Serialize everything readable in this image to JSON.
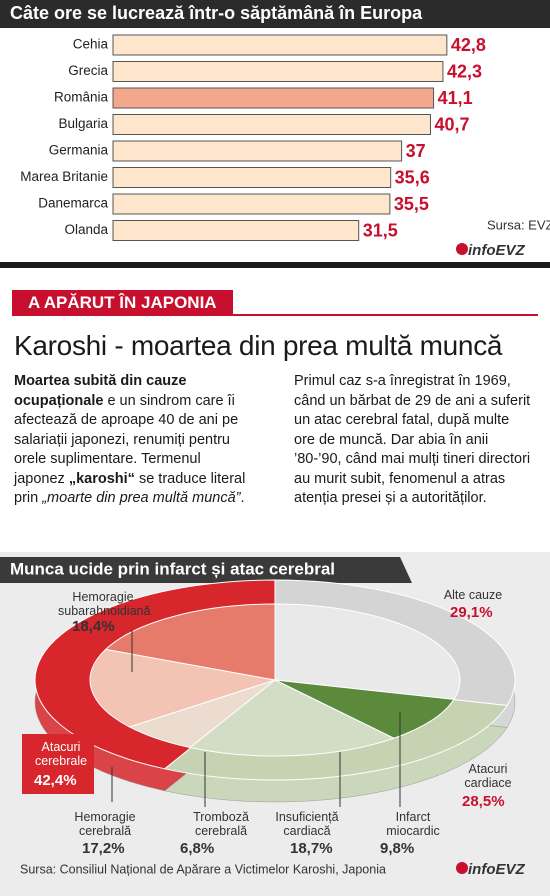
{
  "chart_data": [
    {
      "type": "bar",
      "title": "Câte ore se lucrează într-o săptămână în Europa",
      "categories": [
        "Cehia",
        "Grecia",
        "România",
        "Bulgaria",
        "Germania",
        "Marea Britanie",
        "Danemarca",
        "Olanda"
      ],
      "values": [
        42.8,
        42.3,
        41.1,
        40.7,
        37,
        35.6,
        35.5,
        31.5
      ],
      "value_labels": [
        "42,8",
        "42,3",
        "41,1",
        "40,7",
        "37",
        "35,6",
        "35,5",
        "31,5"
      ],
      "colors": [
        "#fde6cc",
        "#fde6cc",
        "#f3a88c",
        "#fde6cc",
        "#fde6cc",
        "#fde6cc",
        "#fde6cc",
        "#fde6cc"
      ],
      "source": "Sursa: EVZ",
      "logo": "infoEVZ"
    },
    {
      "type": "pie",
      "title": "Munca ucide prin infarct și atac cerebral",
      "slices": [
        {
          "name": "Alte cauze",
          "value": 29.1,
          "value_label": "29,1%",
          "color": "#d4d4d4",
          "parts": [
            {
              "name": null,
              "value": 29.1,
              "value_label": null,
              "color": "#e9e9e9"
            }
          ]
        },
        {
          "name": "Atacuri cardiace",
          "value": 28.5,
          "value_label": "28,5%",
          "color": "#c5d3b3",
          "parts": [
            {
              "name": "Infarct miocardic",
              "value": 9.8,
              "value_label": "9,8%",
              "color": "#5b8a3c"
            },
            {
              "name": "Insuficiență cardiacă",
              "value": 18.7,
              "value_label": "18,7%",
              "color": "#d3ddc6"
            }
          ]
        },
        {
          "name": "Atacuri cerebrale",
          "value": 42.4,
          "value_label": "42,4%",
          "color": "#d7262c",
          "parts": [
            {
              "name": "Tromboză cerebrală",
              "value": 6.8,
              "value_label": "6,8%",
              "color": "#ecdcd0"
            },
            {
              "name": "Hemoragie cerebrală",
              "value": 17.2,
              "value_label": "17,2%",
              "color": "#f3c3b3"
            },
            {
              "name": "Hemoragie subarahnoidiană",
              "value": 18.4,
              "value_label": "18,4%",
              "color": "#e67b6b"
            }
          ]
        }
      ],
      "source": "Sursa: Consiliul Național de Apărare a Victimelor Karoshi, Japonia",
      "logo": "infoEVZ"
    }
  ],
  "article": {
    "section": "A APĂRUT ÎN JAPONIA",
    "headline": "Karoshi - moartea din prea multă muncă",
    "body": [
      {
        "text": "Moartea subită din cauze ocupaționale",
        "style": "bold"
      },
      {
        "text": " e un sindrom care îi afectează de aproape 40 de ani pe salariații japonezi, renumiți pentru orele suplimentare. Termenul japonez ",
        "style": "normal"
      },
      {
        "text": "„karoshi“",
        "style": "bold"
      },
      {
        "text": " se traduce literal prin ",
        "style": "normal"
      },
      {
        "text": "„moarte din prea multă muncă”",
        "style": "italic"
      },
      {
        "text": ". Primul caz s-a înregistrat în 1969, când un bărbat de 29 de ani a suferit un atac cerebral fatal, după multe ore de muncă. Dar abia în anii ’80-’90, când mai mulți tineri directori au murit subit, fenomenul a atras atenția presei și a autorităților.",
        "style": "normal"
      }
    ]
  }
}
